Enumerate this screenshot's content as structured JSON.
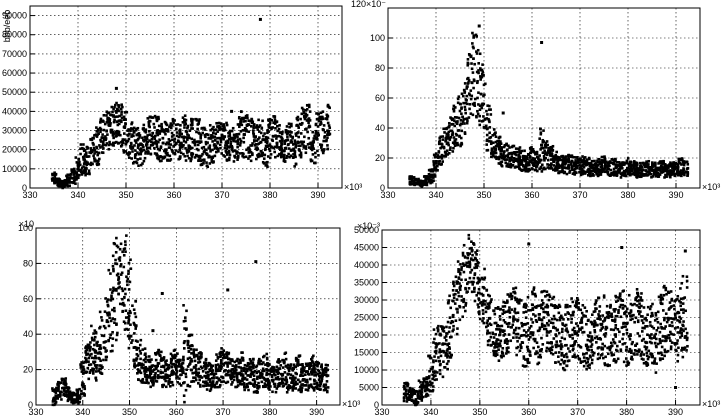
{
  "chart_data": [
    {
      "type": "scatter",
      "ylabel": "bbb/eeb",
      "x_exponent_label": "×10³",
      "y_exponent_label": "",
      "xlim": [
        330,
        395
      ],
      "ylim": [
        0,
        95000
      ],
      "xticks": [
        330,
        340,
        350,
        360,
        370,
        380,
        390
      ],
      "yticks": [
        0,
        10000,
        20000,
        30000,
        40000,
        50000,
        60000,
        70000,
        80000,
        90000
      ],
      "grid": true,
      "outliers": [
        [
          348,
          52000
        ],
        [
          378,
          88000
        ],
        [
          372,
          40000
        ],
        [
          355,
          37000
        ]
      ],
      "series": [
        {
          "x": [
            335,
            336,
            337,
            338,
            339,
            340,
            341,
            342,
            343,
            344,
            345,
            346,
            347,
            348,
            349,
            350,
            351,
            352,
            353,
            354,
            355,
            356,
            357,
            358,
            359,
            360,
            361,
            362,
            363,
            364,
            365,
            366,
            367,
            368,
            369,
            370,
            371,
            372,
            373,
            374,
            375,
            376,
            377,
            378,
            379,
            380,
            381,
            382,
            383,
            384,
            385,
            386,
            387,
            388,
            389,
            390,
            391,
            392
          ],
          "y": [
            5000,
            3000,
            2000,
            4000,
            6000,
            10000,
            15000,
            14000,
            20000,
            22000,
            28000,
            30000,
            32000,
            35000,
            33000,
            30000,
            25000,
            22000,
            20000,
            24000,
            27000,
            28000,
            26000,
            25000,
            24000,
            26000,
            25000,
            28000,
            24000,
            27000,
            25000,
            22000,
            20000,
            23000,
            25000,
            26000,
            24000,
            22000,
            25000,
            28000,
            27000,
            25000,
            24000,
            26000,
            20000,
            25000,
            27000,
            25000,
            22000,
            24000,
            20000,
            27000,
            30000,
            32000,
            22000,
            28000,
            30000,
            32000
          ],
          "spread": [
            3000,
            2000,
            2000,
            3000,
            4000,
            6000,
            8000,
            8000,
            8000,
            10000,
            10000,
            10000,
            11000,
            12000,
            12000,
            12000,
            10000,
            10000,
            9000,
            10000,
            11000,
            12000,
            12000,
            10000,
            10000,
            10000,
            10000,
            12000,
            10000,
            12000,
            11000,
            10000,
            9000,
            10000,
            10000,
            10000,
            10000,
            10000,
            11000,
            12000,
            11000,
            11000,
            10000,
            10000,
            9000,
            11000,
            11000,
            10000,
            10000,
            10000,
            9000,
            11000,
            12000,
            12000,
            9000,
            11000,
            12000,
            12000
          ]
        }
      ]
    },
    {
      "type": "scatter",
      "ylabel": "",
      "x_exponent_label": "×10³",
      "y_exponent_label": "120×10⁻",
      "xlim": [
        330,
        395
      ],
      "ylim": [
        0,
        120
      ],
      "xticks": [
        330,
        340,
        350,
        360,
        370,
        380,
        390
      ],
      "yticks": [
        0,
        20,
        40,
        60,
        80,
        100
      ],
      "grid": true,
      "outliers": [
        [
          349,
          108
        ],
        [
          362,
          97
        ],
        [
          354,
          50
        ]
      ],
      "series": [
        {
          "x": [
            335,
            336,
            337,
            338,
            339,
            340,
            341,
            342,
            343,
            344,
            345,
            346,
            347,
            348,
            349,
            350,
            351,
            352,
            353,
            354,
            355,
            356,
            357,
            358,
            359,
            360,
            361,
            362,
            363,
            364,
            365,
            366,
            367,
            368,
            369,
            370,
            371,
            372,
            373,
            374,
            375,
            376,
            377,
            378,
            379,
            380,
            381,
            382,
            383,
            384,
            385,
            386,
            387,
            388,
            389,
            390,
            391,
            392
          ],
          "y": [
            5,
            4,
            3,
            5,
            8,
            15,
            25,
            30,
            35,
            40,
            45,
            55,
            65,
            75,
            70,
            60,
            40,
            30,
            25,
            22,
            22,
            20,
            20,
            18,
            18,
            20,
            18,
            25,
            22,
            20,
            18,
            16,
            15,
            16,
            15,
            14,
            15,
            14,
            13,
            14,
            15,
            13,
            14,
            13,
            12,
            14,
            13,
            12,
            12,
            13,
            12,
            12,
            13,
            12,
            12,
            13,
            14,
            13
          ],
          "spread": [
            3,
            2,
            2,
            3,
            5,
            8,
            10,
            10,
            12,
            15,
            18,
            20,
            25,
            30,
            28,
            25,
            15,
            10,
            10,
            8,
            8,
            8,
            8,
            7,
            7,
            8,
            7,
            15,
            10,
            8,
            7,
            6,
            6,
            6,
            6,
            6,
            6,
            6,
            5,
            6,
            6,
            5,
            6,
            5,
            5,
            6,
            5,
            5,
            5,
            5,
            5,
            5,
            5,
            5,
            5,
            5,
            6,
            5
          ]
        }
      ]
    },
    {
      "type": "scatter",
      "ylabel": "",
      "x_exponent_label": "×10³",
      "y_exponent_label": "×10",
      "xlim": [
        330,
        395
      ],
      "ylim": [
        0,
        100
      ],
      "xticks": [
        330,
        340,
        350,
        360,
        370,
        380,
        390
      ],
      "yticks": [
        0,
        20,
        40,
        60,
        80,
        100
      ],
      "grid": true,
      "outliers": [
        [
          377,
          81
        ],
        [
          371,
          65
        ],
        [
          355,
          42
        ],
        [
          357,
          63
        ]
      ],
      "series": [
        {
          "x": [
            334,
            335,
            336,
            337,
            338,
            339,
            340,
            341,
            342,
            343,
            344,
            345,
            346,
            347,
            348,
            349,
            350,
            351,
            352,
            353,
            354,
            355,
            356,
            357,
            358,
            359,
            360,
            361,
            362,
            363,
            364,
            365,
            366,
            367,
            368,
            369,
            370,
            371,
            372,
            373,
            374,
            375,
            376,
            377,
            378,
            379,
            380,
            381,
            382,
            383,
            384,
            385,
            386,
            387,
            388,
            389,
            390,
            391,
            392
          ],
          "y": [
            5,
            8,
            10,
            6,
            4,
            5,
            15,
            25,
            30,
            28,
            35,
            45,
            55,
            65,
            80,
            70,
            60,
            40,
            25,
            22,
            20,
            18,
            22,
            20,
            18,
            20,
            22,
            18,
            30,
            25,
            22,
            20,
            18,
            16,
            18,
            20,
            22,
            20,
            18,
            18,
            20,
            16,
            18,
            15,
            18,
            20,
            16,
            15,
            18,
            20,
            15,
            16,
            18,
            15,
            16,
            18,
            17,
            16,
            15
          ],
          "spread": [
            5,
            5,
            5,
            4,
            3,
            4,
            10,
            12,
            15,
            15,
            18,
            22,
            25,
            30,
            25,
            28,
            30,
            20,
            12,
            10,
            8,
            8,
            10,
            10,
            8,
            10,
            10,
            8,
            35,
            15,
            10,
            10,
            8,
            8,
            8,
            10,
            10,
            10,
            8,
            8,
            10,
            8,
            8,
            8,
            8,
            10,
            8,
            8,
            8,
            10,
            8,
            8,
            10,
            8,
            8,
            10,
            8,
            8,
            8
          ]
        }
      ]
    },
    {
      "type": "scatter",
      "ylabel": "",
      "x_exponent_label": "×10³",
      "y_exponent_label": "×10⁻³",
      "xlim": [
        330,
        395
      ],
      "ylim": [
        0,
        50000
      ],
      "xticks": [
        330,
        340,
        350,
        360,
        370,
        380,
        390
      ],
      "yticks": [
        0,
        5000,
        10000,
        15000,
        20000,
        25000,
        30000,
        35000,
        40000,
        45000,
        50000
      ],
      "grid": true,
      "outliers": [
        [
          379,
          45000
        ],
        [
          390,
          5000
        ],
        [
          392,
          44000
        ],
        [
          360,
          46000
        ]
      ],
      "series": [
        {
          "x": [
            335,
            336,
            337,
            338,
            339,
            340,
            341,
            342,
            343,
            344,
            345,
            346,
            347,
            348,
            349,
            350,
            351,
            352,
            353,
            354,
            355,
            356,
            357,
            358,
            359,
            360,
            361,
            362,
            363,
            364,
            365,
            366,
            367,
            368,
            369,
            370,
            371,
            372,
            373,
            374,
            375,
            376,
            377,
            378,
            379,
            380,
            381,
            382,
            383,
            384,
            385,
            386,
            387,
            388,
            389,
            390,
            391,
            392
          ],
          "y": [
            4000,
            3000,
            2000,
            4000,
            5000,
            9000,
            15000,
            16000,
            18000,
            22000,
            28000,
            32000,
            36000,
            40000,
            38000,
            32000,
            30000,
            25000,
            22000,
            20000,
            22000,
            24000,
            25000,
            22000,
            20000,
            22000,
            24000,
            20000,
            24000,
            25000,
            22000,
            20000,
            18000,
            20000,
            22000,
            22000,
            20000,
            18000,
            20000,
            22000,
            22000,
            20000,
            20000,
            22000,
            25000,
            20000,
            22000,
            24000,
            22000,
            20000,
            20000,
            18000,
            22000,
            24000,
            25000,
            22000,
            24000,
            26000
          ],
          "spread": [
            3000,
            2000,
            2000,
            3000,
            3000,
            6000,
            8000,
            8000,
            8000,
            10000,
            10000,
            10000,
            10000,
            9000,
            9000,
            9000,
            9000,
            8000,
            8000,
            8000,
            8000,
            9000,
            10000,
            9000,
            9000,
            10000,
            10000,
            9000,
            10000,
            10000,
            10000,
            9000,
            8000,
            9000,
            9000,
            9000,
            9000,
            9000,
            9000,
            10000,
            10000,
            9000,
            9000,
            10000,
            10000,
            9000,
            10000,
            10000,
            10000,
            9000,
            9000,
            9000,
            10000,
            10000,
            10000,
            10000,
            11000,
            11000
          ]
        }
      ]
    }
  ]
}
